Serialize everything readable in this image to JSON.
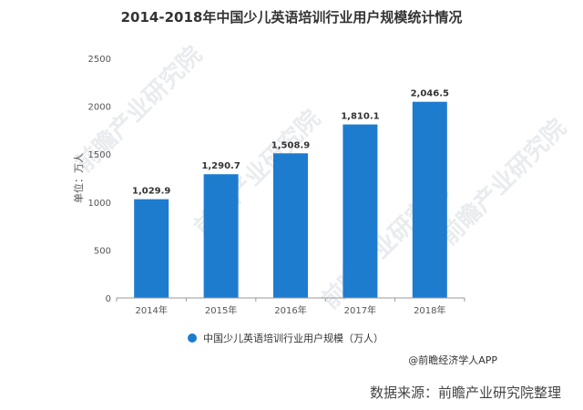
{
  "chart_data": {
    "type": "bar",
    "title": "2014-2018年中国少儿英语培训行业用户规模统计情况",
    "ylabel": "单位：万人",
    "xlabel": "",
    "categories": [
      "2014年",
      "2015年",
      "2016年",
      "2017年",
      "2018年"
    ],
    "series": [
      {
        "name": "中国少儿英语培训行业用户规模（万人）",
        "values": [
          1029.9,
          1290.7,
          1508.9,
          1810.1,
          2046.5
        ]
      }
    ],
    "value_labels": [
      "1,029.9",
      "1,290.7",
      "1,508.9",
      "1,810.1",
      "2,046.5"
    ],
    "ylim": [
      0,
      2500
    ],
    "yticks": [
      0,
      500,
      1000,
      1500,
      2000,
      2500
    ],
    "grid": false,
    "legend": "bottom-center",
    "color": "#1e7ccf"
  },
  "credit": "@前瞻经济学人APP",
  "source": "数据来源：前瞻产业研究院整理",
  "watermark_text": "前瞻产业研究院"
}
